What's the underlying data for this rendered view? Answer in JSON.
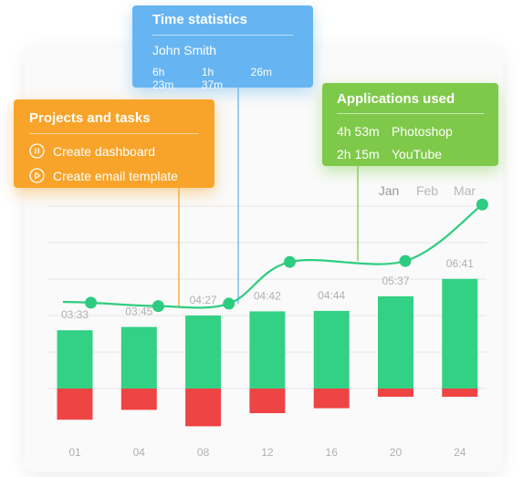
{
  "colors": {
    "line": "#2ecc80",
    "bar_green": "#33d183",
    "bar_red": "#ef4444",
    "grid": "#e6e6e6",
    "label": "#b0b0b0",
    "tooltip_time": "#66b5f2",
    "tooltip_projects": "#f8a42a",
    "tooltip_apps": "#7fc94a"
  },
  "time_statistics": {
    "title": "Time statistics",
    "user": "John Smith",
    "durations": [
      "6h 23m",
      "1h 37m",
      "26m"
    ]
  },
  "projects_tasks": {
    "title": "Projects and tasks",
    "tasks": [
      {
        "label": "Create dashboard",
        "icon": "pause-circle-icon"
      },
      {
        "label": "Create email template",
        "icon": "play-circle-icon"
      }
    ]
  },
  "applications_used": {
    "title": "Applications used",
    "apps": [
      {
        "duration": "4h 53m",
        "name": "Photoshop"
      },
      {
        "duration": "2h 15m",
        "name": "YouTube"
      }
    ]
  },
  "months": [
    "Jan",
    "Feb",
    "Mar"
  ],
  "chart_data": {
    "type": "bar",
    "categories": [
      "01",
      "04",
      "08",
      "12",
      "16",
      "20",
      "24"
    ],
    "series": [
      {
        "values": [
          3.55,
          3.75,
          4.45,
          4.7,
          4.73,
          5.62,
          6.68
        ]
      },
      {
        "values": [
          1.9,
          1.3,
          2.3,
          1.5,
          1.2,
          0.5,
          0.5
        ]
      }
    ],
    "data_labels": [
      "03:33",
      "03:45",
      "04:27",
      "04:42",
      "04:44",
      "05:37",
      "06:41"
    ],
    "trend_line": [
      {
        "x": 0.25,
        "y": 17.5
      },
      {
        "x": 1.3,
        "y": 16.8
      },
      {
        "x": 2.4,
        "y": 17.3
      },
      {
        "x": 3.35,
        "y": 25.8
      },
      {
        "x": 5.15,
        "y": 26.0
      },
      {
        "x": 6.35,
        "y": 37.5
      }
    ],
    "grid": true
  }
}
